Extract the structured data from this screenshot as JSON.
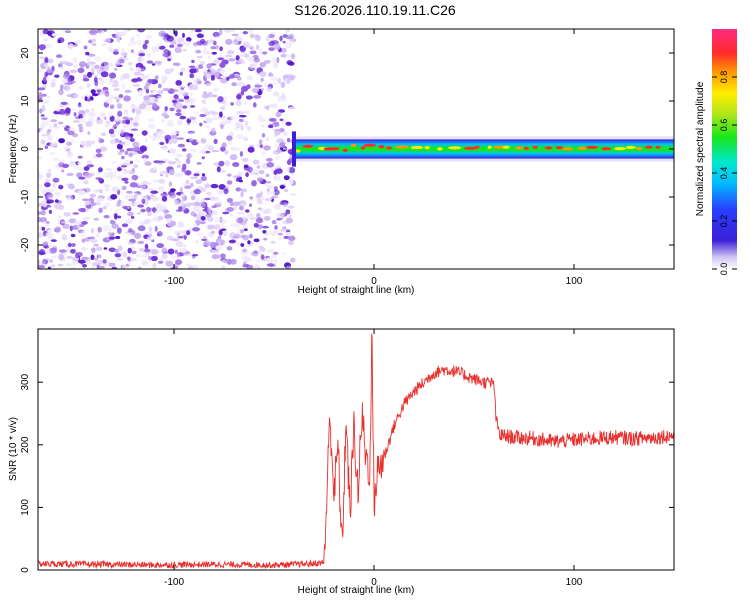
{
  "figure_title": "S126.2026.110.19.11.C26",
  "colors": {
    "line": "#e8312e",
    "noise": "#7a2fe0",
    "axis": "#000000"
  },
  "chart_data": [
    {
      "type": "heatmap",
      "title": "S126.2026.110.19.11.C26",
      "xlabel": "Height of straight line (km)",
      "ylabel": "Frequency (Hz)",
      "xlim": [
        -168,
        150
      ],
      "ylim": [
        -25,
        25
      ],
      "xticks": [
        -100,
        0,
        100
      ],
      "xtick_labels": [
        "-100",
        "0",
        "100"
      ],
      "yticks": [
        -20,
        -10,
        0,
        10,
        20
      ],
      "ytick_labels": [
        "-20",
        "-10",
        "0",
        "10",
        "20"
      ],
      "noise_region_x": [
        -168,
        -40
      ],
      "signal_band_hz": [
        -2,
        2
      ],
      "colorbar": {
        "label": "Normalized spectral amplitude",
        "range": [
          0,
          1
        ],
        "ticks": [
          0.0,
          0.2,
          0.4,
          0.6,
          0.8
        ],
        "tick_labels": [
          "0.0",
          "0.2",
          "0.4",
          "0.6",
          "0.8"
        ]
      }
    },
    {
      "type": "line",
      "xlabel": "Height of straight line (km)",
      "ylabel": "SNR (10 * v/v)",
      "xlim": [
        -168,
        150
      ],
      "ylim": [
        0,
        385
      ],
      "xticks": [
        -100,
        0,
        100
      ],
      "xtick_labels": [
        "-100",
        "0",
        "100"
      ],
      "yticks": [
        0,
        100,
        200,
        300
      ],
      "ytick_labels": [
        "0",
        "100",
        "200",
        "300"
      ],
      "series": [
        {
          "name": "SNR",
          "x": [
            -168,
            -140,
            -110,
            -80,
            -50,
            -30,
            -25,
            -24,
            -22,
            -20,
            -18,
            -16,
            -14,
            -12,
            -10,
            -8,
            -6,
            -4,
            -2,
            -1,
            0,
            2,
            5,
            10,
            15,
            20,
            25,
            30,
            35,
            40,
            45,
            50,
            55,
            60,
            61,
            63,
            70,
            80,
            90,
            100,
            110,
            120,
            130,
            140,
            150
          ],
          "y": [
            10,
            9,
            8,
            9,
            8,
            10,
            12,
            80,
            250,
            120,
            200,
            30,
            240,
            90,
            230,
            120,
            250,
            180,
            160,
            385,
            110,
            160,
            180,
            230,
            265,
            285,
            300,
            315,
            320,
            318,
            312,
            305,
            300,
            298,
            240,
            215,
            212,
            210,
            205,
            208,
            210,
            212,
            210,
            212,
            215
          ]
        }
      ]
    }
  ]
}
